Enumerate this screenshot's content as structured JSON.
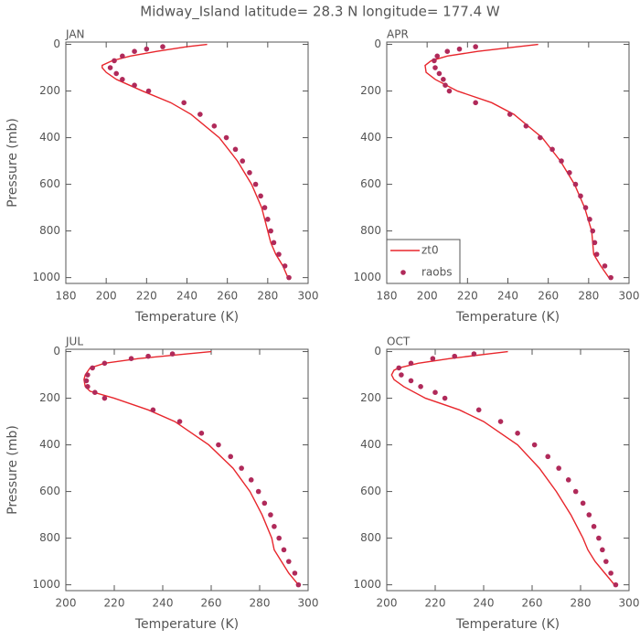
{
  "title": "Midway_Island  latitude= 28.3 N longitude= 177.4 W",
  "chart_data": [
    {
      "type": "line",
      "title": "JAN",
      "xlabel": "Temperature (K)",
      "ylabel": "Pressure (mb)",
      "xlim": [
        180,
        300
      ],
      "xticks": [
        180,
        200,
        220,
        240,
        260,
        280,
        300
      ],
      "ylim": [
        1025,
        -10
      ],
      "yticks": [
        0,
        200,
        400,
        600,
        800,
        1000
      ],
      "series": [
        {
          "name": "zt0",
          "style": "line",
          "color": "#e8262c",
          "x": [
            290,
            287.5,
            284,
            281.5,
            280,
            277,
            272,
            265,
            256,
            242,
            232,
            218,
            205,
            200,
            198,
            198,
            203,
            212,
            225,
            240,
            250
          ],
          "y": [
            1000,
            950,
            900,
            850,
            800,
            700,
            600,
            500,
            400,
            300,
            250,
            200,
            150,
            120,
            100,
            90,
            70,
            50,
            30,
            10,
            0
          ]
        },
        {
          "name": "raobs",
          "style": "points",
          "color": "#b02a5a",
          "x": [
            290.5,
            288.5,
            285.5,
            283,
            281.5,
            280,
            278.5,
            276.5,
            274,
            271,
            267.5,
            264,
            259.5,
            253.5,
            246.5,
            238.5,
            221,
            214,
            208,
            205,
            202,
            204,
            208,
            214,
            220,
            228
          ],
          "y": [
            1000,
            950,
            900,
            850,
            800,
            750,
            700,
            650,
            600,
            550,
            500,
            450,
            400,
            350,
            300,
            250,
            200,
            175,
            150,
            125,
            100,
            70,
            50,
            30,
            20,
            10
          ]
        }
      ]
    },
    {
      "type": "line",
      "title": "APR",
      "xlabel": "Temperature (K)",
      "legend": "lower left",
      "xlim": [
        180,
        300
      ],
      "xticks": [
        180,
        200,
        220,
        240,
        260,
        280,
        300
      ],
      "ylim": [
        1025,
        -10
      ],
      "yticks": [
        0,
        200,
        400,
        600,
        800,
        1000
      ],
      "series": [
        {
          "name": "zt0",
          "style": "line",
          "color": "#e8262c",
          "x": [
            290,
            286,
            282.5,
            282,
            281.5,
            278,
            273,
            266,
            257,
            243,
            232,
            215,
            204,
            199.5,
            199,
            202,
            210,
            225,
            245,
            255
          ],
          "y": [
            1000,
            950,
            900,
            850,
            800,
            700,
            600,
            500,
            400,
            300,
            250,
            200,
            150,
            120,
            90,
            70,
            50,
            30,
            10,
            0
          ]
        },
        {
          "name": "raobs",
          "style": "points",
          "color": "#b02a5a",
          "x": [
            291,
            288,
            284,
            283,
            282,
            280.5,
            278.5,
            276,
            273.5,
            270.5,
            266.5,
            262,
            256,
            249,
            241,
            224,
            211,
            209,
            208,
            206,
            204,
            203.5,
            205,
            210,
            216,
            224
          ],
          "y": [
            1000,
            950,
            900,
            850,
            800,
            750,
            700,
            650,
            600,
            550,
            500,
            450,
            400,
            350,
            300,
            250,
            200,
            175,
            150,
            125,
            100,
            70,
            50,
            30,
            20,
            10
          ]
        }
      ]
    },
    {
      "type": "line",
      "title": "JUL",
      "xlabel": "Temperature (K)",
      "ylabel": "Pressure (mb)",
      "xlim": [
        200,
        300
      ],
      "xticks": [
        200,
        220,
        240,
        260,
        280,
        300
      ],
      "ylim": [
        1025,
        -10
      ],
      "yticks": [
        0,
        200,
        400,
        600,
        800,
        1000
      ],
      "series": [
        {
          "name": "zt0",
          "style": "line",
          "color": "#e8262c",
          "x": [
            296,
            292,
            289,
            286,
            285,
            281,
            276,
            269,
            259,
            245,
            234,
            220,
            210,
            208,
            207.5,
            208,
            210,
            216,
            230,
            250,
            260
          ],
          "y": [
            1000,
            950,
            900,
            850,
            800,
            700,
            600,
            500,
            400,
            300,
            250,
            200,
            170,
            150,
            120,
            100,
            70,
            50,
            30,
            10,
            0
          ]
        },
        {
          "name": "raobs",
          "style": "points",
          "color": "#b02a5a",
          "x": [
            296,
            294.5,
            292,
            290,
            288,
            286,
            284.5,
            282,
            279.5,
            276.5,
            272.5,
            268,
            263,
            256,
            247,
            236,
            216,
            212,
            209,
            208.5,
            209,
            211,
            216,
            227,
            234,
            244
          ],
          "y": [
            1000,
            950,
            900,
            850,
            800,
            750,
            700,
            650,
            600,
            550,
            500,
            450,
            400,
            350,
            300,
            250,
            200,
            175,
            150,
            125,
            100,
            70,
            50,
            30,
            20,
            10
          ]
        }
      ]
    },
    {
      "type": "line",
      "title": "OCT",
      "xlabel": "Temperature (K)",
      "xlim": [
        200,
        300
      ],
      "xticks": [
        200,
        220,
        240,
        260,
        280,
        300
      ],
      "ylim": [
        1025,
        -10
      ],
      "yticks": [
        0,
        200,
        400,
        600,
        800,
        1000
      ],
      "series": [
        {
          "name": "zt0",
          "style": "line",
          "color": "#e8262c",
          "x": [
            294,
            290,
            286,
            283,
            281,
            276,
            270,
            263,
            254,
            240,
            230,
            216,
            207,
            203,
            202,
            203,
            205,
            213,
            226,
            242,
            250
          ],
          "y": [
            1000,
            950,
            900,
            850,
            800,
            700,
            600,
            500,
            400,
            300,
            250,
            200,
            150,
            120,
            100,
            80,
            70,
            50,
            30,
            10,
            0
          ]
        },
        {
          "name": "raobs",
          "style": "points",
          "color": "#b02a5a",
          "x": [
            294.5,
            292.5,
            290.5,
            289,
            287.5,
            285.5,
            283.5,
            281,
            278,
            275,
            271,
            266.5,
            261,
            254,
            247,
            238,
            224,
            220,
            214,
            210,
            206,
            205,
            210,
            219,
            228,
            236
          ],
          "y": [
            1000,
            950,
            900,
            850,
            800,
            750,
            700,
            650,
            600,
            550,
            500,
            450,
            400,
            350,
            300,
            250,
            200,
            175,
            150,
            125,
            100,
            70,
            50,
            30,
            20,
            10
          ]
        }
      ]
    }
  ]
}
